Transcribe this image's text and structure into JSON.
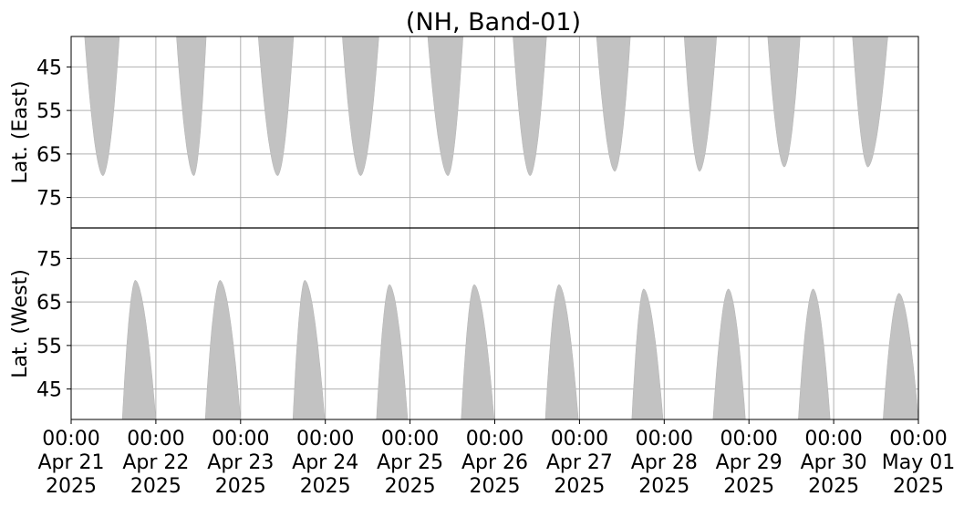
{
  "chart_data": {
    "type": "heatmap",
    "title": "(NH, Band-01)",
    "colors": {
      "coverage": "#c2c2c2",
      "grid": "#b0b0b0",
      "frame": "#000000",
      "background": "#ffffff"
    },
    "grid": true,
    "x": {
      "range": [
        "2025-04-21T00:00",
        "2025-05-01T00:00"
      ],
      "ticks": [
        {
          "time": "00:00",
          "date": "Apr 21",
          "year": "2025"
        },
        {
          "time": "00:00",
          "date": "Apr 22",
          "year": "2025"
        },
        {
          "time": "00:00",
          "date": "Apr 23",
          "year": "2025"
        },
        {
          "time": "00:00",
          "date": "Apr 24",
          "year": "2025"
        },
        {
          "time": "00:00",
          "date": "Apr 25",
          "year": "2025"
        },
        {
          "time": "00:00",
          "date": "Apr 26",
          "year": "2025"
        },
        {
          "time": "00:00",
          "date": "Apr 27",
          "year": "2025"
        },
        {
          "time": "00:00",
          "date": "Apr 28",
          "year": "2025"
        },
        {
          "time": "00:00",
          "date": "Apr 29",
          "year": "2025"
        },
        {
          "time": "00:00",
          "date": "Apr 30",
          "year": "2025"
        },
        {
          "time": "00:00",
          "date": "May 01",
          "year": "2025"
        }
      ]
    },
    "panels": [
      {
        "id": "east",
        "ylabel": "Lat. (East)",
        "ylim": [
          38,
          82
        ],
        "y_inverted": true,
        "yticks": [
          "45",
          "55",
          "65",
          "75"
        ],
        "coverage": [
          {
            "start": "2025-04-21 03:50",
            "end": "2025-04-21 13:40",
            "peak_time": "2025-04-21 09:00",
            "max_lat": 70
          },
          {
            "start": "2025-04-22 05:50",
            "end": "2025-04-22 14:15",
            "peak_time": "2025-04-22 10:45",
            "max_lat": 70
          },
          {
            "start": "2025-04-23 05:00",
            "end": "2025-04-23 15:00",
            "peak_time": "2025-04-23 10:30",
            "max_lat": 70
          },
          {
            "start": "2025-04-24 04:50",
            "end": "2025-04-24 15:10",
            "peak_time": "2025-04-24 10:00",
            "max_lat": 70
          },
          {
            "start": "2025-04-25 05:00",
            "end": "2025-04-25 15:00",
            "peak_time": "2025-04-25 10:45",
            "max_lat": 70
          },
          {
            "start": "2025-04-26 05:10",
            "end": "2025-04-26 14:40",
            "peak_time": "2025-04-26 10:00",
            "max_lat": 70
          },
          {
            "start": "2025-04-27 04:50",
            "end": "2025-04-27 14:25",
            "peak_time": "2025-04-27 10:00",
            "max_lat": 69
          },
          {
            "start": "2025-04-28 05:40",
            "end": "2025-04-28 14:50",
            "peak_time": "2025-04-28 10:00",
            "max_lat": 69
          },
          {
            "start": "2025-04-29 05:20",
            "end": "2025-04-29 14:30",
            "peak_time": "2025-04-29 10:00",
            "max_lat": 68
          },
          {
            "start": "2025-04-30 05:20",
            "end": "2025-04-30 15:20",
            "peak_time": "2025-04-30 09:40",
            "max_lat": 68
          }
        ]
      },
      {
        "id": "west",
        "ylabel": "Lat. (West)",
        "ylim": [
          38,
          82
        ],
        "y_inverted": false,
        "yticks": [
          "75",
          "65",
          "55",
          "45"
        ],
        "coverage": [
          {
            "start": "2025-04-21 14:30",
            "end": "2025-04-21 24:00",
            "peak_time": "2025-04-21 18:10",
            "max_lat": 70
          },
          {
            "start": "2025-04-22 14:00",
            "end": "2025-04-22 24:00",
            "peak_time": "2025-04-22 18:10",
            "max_lat": 70
          },
          {
            "start": "2025-04-23 14:50",
            "end": "2025-04-23 23:50",
            "peak_time": "2025-04-23 18:10",
            "max_lat": 70
          },
          {
            "start": "2025-04-24 14:30",
            "end": "2025-04-24 23:20",
            "peak_time": "2025-04-24 18:10",
            "max_lat": 69
          },
          {
            "start": "2025-04-25 14:30",
            "end": "2025-04-25 23:50",
            "peak_time": "2025-04-25 18:10",
            "max_lat": 69
          },
          {
            "start": "2025-04-26 14:20",
            "end": "2025-04-26 23:40",
            "peak_time": "2025-04-26 18:10",
            "max_lat": 69
          },
          {
            "start": "2025-04-27 14:50",
            "end": "2025-04-27 23:40",
            "peak_time": "2025-04-27 18:10",
            "max_lat": 68
          },
          {
            "start": "2025-04-28 13:50",
            "end": "2025-04-28 23:00",
            "peak_time": "2025-04-28 18:10",
            "max_lat": 68
          },
          {
            "start": "2025-04-29 14:00",
            "end": "2025-04-29 23:00",
            "peak_time": "2025-04-29 18:10",
            "max_lat": 68
          },
          {
            "start": "2025-04-30 14:00",
            "end": "2025-04-30 24:00",
            "peak_time": "2025-04-30 18:30",
            "max_lat": 67
          }
        ]
      }
    ]
  }
}
